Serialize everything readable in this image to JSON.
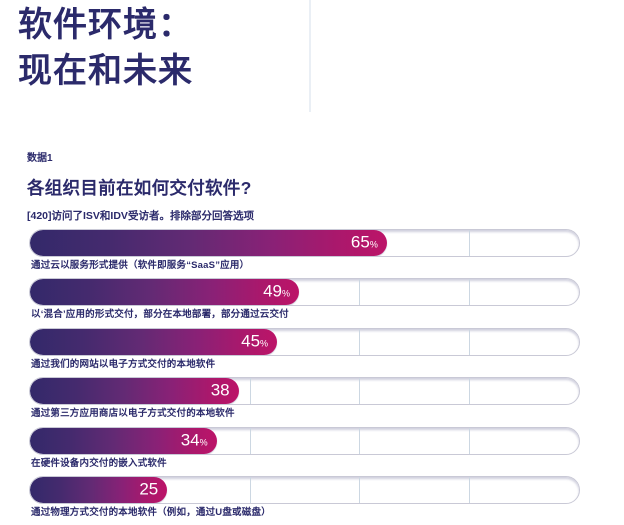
{
  "page": {
    "title_line1": "软件环境：",
    "title_line2": "现在和未来",
    "background": "#ffffff",
    "accent_color": "#2b2a6b"
  },
  "section": {
    "kicker": "数据1",
    "heading": "各组织目前在如何交付软件?",
    "note": "[420]访问了ISV和IDV受访者。排除部分回答选项"
  },
  "chart_data": {
    "type": "bar",
    "orientation": "horizontal",
    "title": "各组织目前在如何交付软件?",
    "subtitle": "[420]访问了ISV和IDV受访者。排除部分回答选项",
    "xlim": [
      0,
      100
    ],
    "gridlines_percent": [
      20,
      40,
      60,
      80
    ],
    "unit": "%",
    "categories": [
      "通过云以服务形式提供（软件即服务“SaaS”应用）",
      "以‘混合’应用的形式交付，部分在本地部署，部分通过云交付",
      "通过我们的网站以电子方式交付的本地软件",
      "通过第三方应用商店以电子方式交付的本地软件",
      "在硬件设备内交付的嵌入式软件",
      "通过物理方式交付的本地软件（例如，通过U盘或磁盘）"
    ],
    "values": [
      65,
      49,
      45,
      38,
      34,
      25
    ],
    "bars": [
      {
        "label": "通过云以服务形式提供（软件即服务“SaaS”应用）",
        "value": 65,
        "value_label": "65",
        "percent_suffix": "%"
      },
      {
        "label": "以‘混合’应用的形式交付，部分在本地部署，部分通过云交付",
        "value": 49,
        "value_label": "49",
        "percent_suffix": "%"
      },
      {
        "label": "通过我们的网站以电子方式交付的本地软件",
        "value": 45,
        "value_label": "45",
        "percent_suffix": "%"
      },
      {
        "label": "通过第三方应用商店以电子方式交付的本地软件",
        "value": 38,
        "value_label": "38",
        "percent_suffix": ""
      },
      {
        "label": "在硬件设备内交付的嵌入式软件",
        "value": 34,
        "value_label": "34",
        "percent_suffix": "%"
      },
      {
        "label": "通过物理方式交付的本地软件（例如，通过U盘或磁盘）",
        "value": 25,
        "value_label": "25",
        "percent_suffix": ""
      }
    ],
    "colors": {
      "bar_gradient_start": "#33296a",
      "bar_gradient_end": "#bc1468",
      "track_border": "#c9c9d6",
      "gridline": "#ccd7e2",
      "value_text": "#ffffff",
      "label_text": "#2b2a6b"
    }
  }
}
